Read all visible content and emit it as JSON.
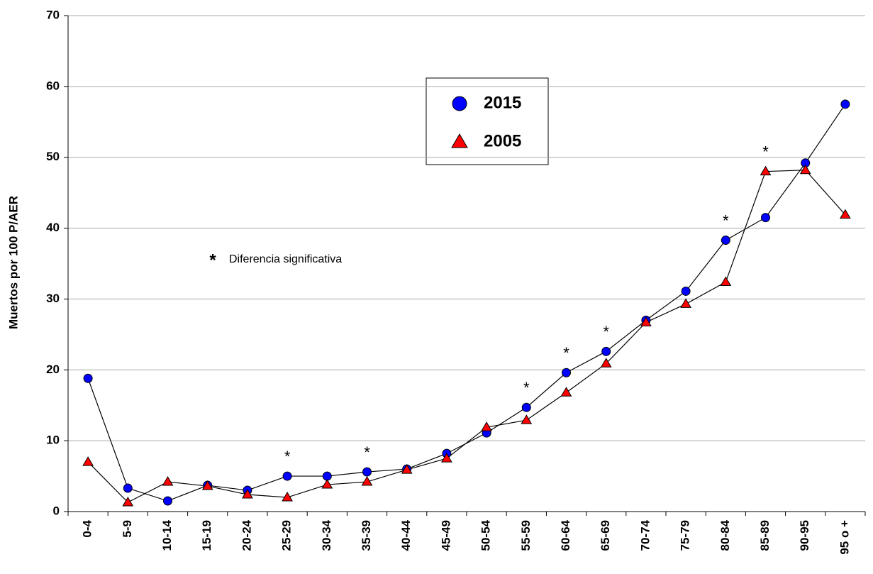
{
  "chart_data": {
    "type": "line",
    "y_label": "Muertos por 100 P/AER",
    "categories": [
      "0-4",
      "5-9",
      "10-14",
      "15-19",
      "20-24",
      "25-29",
      "30-34",
      "35-39",
      "40-44",
      "45-49",
      "50-54",
      "55-59",
      "60-64",
      "65-69",
      "70-74",
      "75-79",
      "80-84",
      "85-89",
      "90-95",
      "95 o +"
    ],
    "series": [
      {
        "name": "2015",
        "color": "#0000ff",
        "marker": "circle",
        "values": [
          18.8,
          3.3,
          1.5,
          3.7,
          3.0,
          5.0,
          5.0,
          5.6,
          6.0,
          8.2,
          11.1,
          14.7,
          19.6,
          22.6,
          27.0,
          31.1,
          38.3,
          41.5,
          49.2,
          57.5
        ]
      },
      {
        "name": "2005",
        "color": "#ff0000",
        "marker": "triangle",
        "values": [
          7.0,
          1.3,
          4.2,
          3.6,
          2.4,
          2.0,
          3.8,
          4.2,
          5.9,
          7.5,
          11.9,
          12.9,
          16.8,
          20.9,
          26.7,
          29.3,
          32.4,
          48.0,
          48.2,
          41.9
        ]
      }
    ],
    "ylim": [
      0,
      70
    ],
    "yticks": [
      0,
      10,
      20,
      30,
      40,
      50,
      60,
      70
    ],
    "grid": true,
    "note": {
      "symbol": "*",
      "text": "Diferencia significativa"
    },
    "significant": [
      "25-29",
      "35-39",
      "55-59",
      "60-64",
      "65-69",
      "80-84",
      "85-89"
    ]
  }
}
